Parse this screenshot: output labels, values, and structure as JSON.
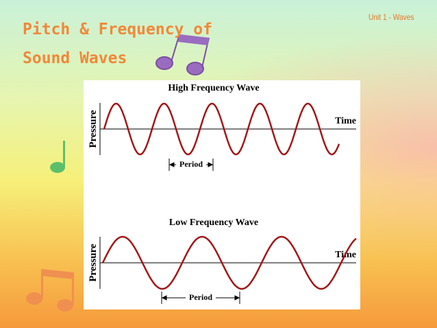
{
  "header": {
    "title": [
      "Pitch & Frequency of",
      "Sound Waves"
    ],
    "unit": "Unit 1 - Waves"
  },
  "panels": [
    {
      "title": "High Frequency Wave",
      "y_label": "Pressure",
      "x_label": "Time",
      "period_label": "Period"
    },
    {
      "title": "Low Frequency Wave",
      "y_label": "Pressure",
      "x_label": "Time",
      "period_label": "Period"
    }
  ]
}
